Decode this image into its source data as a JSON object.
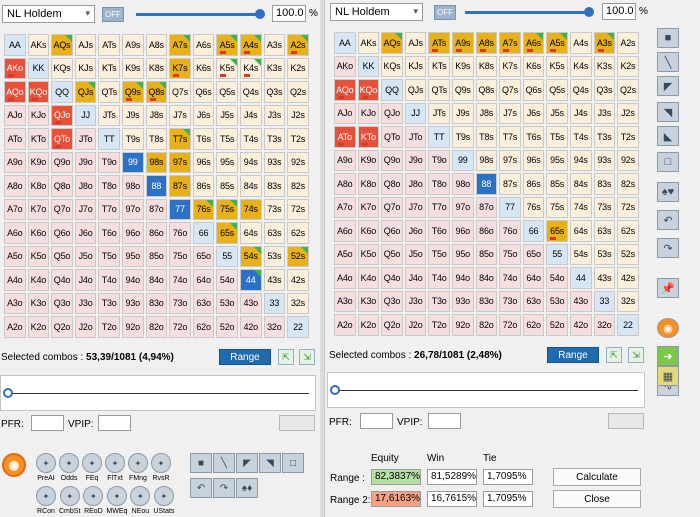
{
  "left": {
    "game_select": "NL Holdem",
    "off_label": "OFF",
    "percent_value": "100.0",
    "percent_sign": "%",
    "selected_label": "Selected combos : ",
    "selected_value": "53,39/1081 (4,94%)",
    "range_button": "Range",
    "pfr_label": "PFR:",
    "vpip_label": "VPIP:",
    "tools": [
      {
        "icon": "pushall-icon",
        "label": "PreAI"
      },
      {
        "icon": "odds-icon",
        "label": "Odds"
      },
      {
        "icon": "feq-icon",
        "label": "FEq"
      },
      {
        "icon": "fltxt-icon",
        "label": "FlTxt"
      },
      {
        "icon": "fmng-icon",
        "label": "FMng"
      },
      {
        "icon": "rvsr-icon",
        "label": "RvsR"
      }
    ],
    "tools2": [
      {
        "icon": "rcon-icon",
        "label": "RCon"
      },
      {
        "icon": "cmbst-icon",
        "label": "CmbSt"
      },
      {
        "icon": "reod-icon",
        "label": "REoD"
      },
      {
        "icon": "mweq-icon",
        "label": "MWEq"
      },
      {
        "icon": "neou-icon",
        "label": "NEou"
      },
      {
        "icon": "ustats-icon",
        "label": "UStats"
      }
    ]
  },
  "right": {
    "game_select": "NL Holdem",
    "off_label": "OFF",
    "percent_value": "100.0",
    "percent_sign": "%",
    "selected_label": "Selected combos : ",
    "selected_value": "26,78/1081 (2,48%)",
    "range_button": "Range",
    "pfr_label": "PFR:",
    "vpip_label": "VPIP:",
    "equity_header": "Equity",
    "win_header": "Win",
    "tie_header": "Tie",
    "rows": [
      {
        "label": "Range :",
        "equity": "82,3837%",
        "win": "81,5289%",
        "tie": "1,7095%"
      },
      {
        "label": "Range 2:",
        "equity": "17,6163%",
        "win": "16,7615%",
        "tie": "1,7095%"
      }
    ],
    "calculate_button": "Calculate",
    "close_button": "Close"
  },
  "ranks": [
    "A",
    "K",
    "Q",
    "J",
    "T",
    "9",
    "8",
    "7",
    "6",
    "5",
    "4",
    "3",
    "2"
  ],
  "left_selected": {
    "sel": [
      "AQs",
      "A7s",
      "A5s",
      "A4s",
      "A2s",
      "K7s",
      "QJs",
      "Q9s",
      "Q8s",
      "98s",
      "97s",
      "87s",
      "T7s",
      "76s",
      "75s",
      "65s",
      "54s",
      "52s",
      "74s"
    ],
    "red": [
      "AKo",
      "AQo",
      "KQo",
      "QJo",
      "QTo"
    ],
    "blue": [
      "99",
      "88",
      "77",
      "44"
    ],
    "mark": [
      "K7s",
      "Q9s",
      "Q8s",
      "K5s",
      "K4s",
      "A5s",
      "A4s",
      "A2s",
      "QJo",
      "QTo",
      "AKo",
      "AQo",
      "KQo"
    ],
    "green": [
      "AQs",
      "A7s",
      "A5s",
      "A4s",
      "A2s",
      "K5s",
      "K4s",
      "QJs",
      "Q9s",
      "Q8s",
      "T7s",
      "76s",
      "75s",
      "65s",
      "54s",
      "52s",
      "44"
    ]
  },
  "right_selected": {
    "sel": [
      "AQs",
      "ATs",
      "A9s",
      "A8s",
      "A7s",
      "A6s",
      "A5s",
      "A3s",
      "65s"
    ],
    "red": [
      "AQo",
      "KQo",
      "ATo",
      "KTo"
    ],
    "blue": [
      "88"
    ],
    "mark": [
      "ATs",
      "A9s",
      "A8s",
      "A7s",
      "A6s",
      "A5s",
      "A3s",
      "AQo",
      "KQo",
      "ATo",
      "KTo",
      "65s"
    ],
    "green": [
      "AQs",
      "A6s",
      "A5s",
      "A3s"
    ]
  },
  "side_tools": [
    {
      "icon": "select-all-icon"
    },
    {
      "icon": "diag-line-icon"
    },
    {
      "icon": "top-tri-icon"
    },
    {
      "icon": "corner-tri-icon"
    },
    {
      "icon": "half-tri-icon"
    },
    {
      "icon": "clear-icon"
    },
    {
      "icon": "suits-icon"
    },
    {
      "icon": "undo-icon"
    },
    {
      "icon": "redo-icon"
    },
    {
      "icon": "pin-icon"
    },
    {
      "icon": "orange-icon"
    },
    {
      "icon": "arrow-right-icon"
    },
    {
      "icon": "chart-icon"
    },
    {
      "icon": "table-icon"
    }
  ]
}
